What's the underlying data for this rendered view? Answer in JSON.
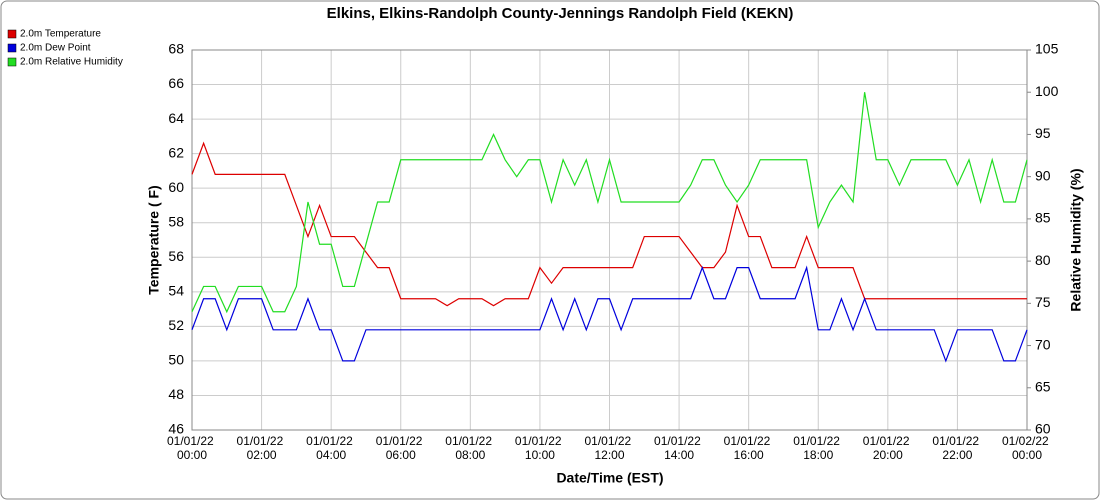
{
  "chart_data": {
    "type": "line",
    "title": "Elkins, Elkins-Randolph County-Jennings Randolph Field (KEKN)",
    "x_label": "Date/Time (EST)",
    "y_label": "Temperature ( F)",
    "y2_label": "Relative Humidity (%)",
    "x": [
      "01/01/22 00:00",
      "01/01/22 00:20",
      "01/01/22 00:40",
      "01/01/22 01:00",
      "01/01/22 01:20",
      "01/01/22 01:40",
      "01/01/22 02:00",
      "01/01/22 02:20",
      "01/01/22 02:40",
      "01/01/22 03:00",
      "01/01/22 03:20",
      "01/01/22 03:40",
      "01/01/22 04:00",
      "01/01/22 04:20",
      "01/01/22 04:40",
      "01/01/22 05:00",
      "01/01/22 05:20",
      "01/01/22 05:40",
      "01/01/22 06:00",
      "01/01/22 06:20",
      "01/01/22 06:40",
      "01/01/22 07:00",
      "01/01/22 07:20",
      "01/01/22 07:40",
      "01/01/22 08:00",
      "01/01/22 08:20",
      "01/01/22 08:40",
      "01/01/22 09:00",
      "01/01/22 09:20",
      "01/01/22 09:40",
      "01/01/22 10:00",
      "01/01/22 10:20",
      "01/01/22 10:40",
      "01/01/22 11:00",
      "01/01/22 11:20",
      "01/01/22 11:40",
      "01/01/22 12:00",
      "01/01/22 12:20",
      "01/01/22 12:40",
      "01/01/22 13:00",
      "01/01/22 13:20",
      "01/01/22 13:40",
      "01/01/22 14:00",
      "01/01/22 14:20",
      "01/01/22 14:40",
      "01/01/22 15:00",
      "01/01/22 15:20",
      "01/01/22 15:40",
      "01/01/22 16:00",
      "01/01/22 16:20",
      "01/01/22 16:40",
      "01/01/22 17:00",
      "01/01/22 17:20",
      "01/01/22 17:40",
      "01/01/22 18:00",
      "01/01/22 18:20",
      "01/01/22 18:40",
      "01/01/22 19:00",
      "01/01/22 19:20",
      "01/01/22 19:40",
      "01/01/22 20:00",
      "01/01/22 20:20",
      "01/01/22 20:40",
      "01/01/22 21:00",
      "01/01/22 21:20",
      "01/01/22 21:40",
      "01/01/22 22:00",
      "01/01/22 22:20",
      "01/01/22 22:40",
      "01/01/22 23:00",
      "01/01/22 23:20",
      "01/01/22 23:40",
      "01/02/22 00:00"
    ],
    "series": [
      {
        "name": "2.0m Temperature",
        "color": "#dd0000",
        "axis": "y",
        "values": [
          60.8,
          62.6,
          60.8,
          60.8,
          60.8,
          60.8,
          60.8,
          60.8,
          60.8,
          59.0,
          57.2,
          59.0,
          57.2,
          57.2,
          57.2,
          56.3,
          55.4,
          55.4,
          53.6,
          53.6,
          53.6,
          53.6,
          53.2,
          53.6,
          53.6,
          53.6,
          53.2,
          53.6,
          53.6,
          53.6,
          55.4,
          54.5,
          55.4,
          55.4,
          55.4,
          55.4,
          55.4,
          55.4,
          55.4,
          57.2,
          57.2,
          57.2,
          57.2,
          56.3,
          55.4,
          55.4,
          56.3,
          59.0,
          57.2,
          57.2,
          55.4,
          55.4,
          55.4,
          57.2,
          55.4,
          55.4,
          55.4,
          55.4,
          53.6,
          53.6,
          53.6,
          53.6,
          53.6,
          53.6,
          53.6,
          53.6,
          53.6,
          53.6,
          53.6,
          53.6,
          53.6,
          53.6,
          53.6
        ]
      },
      {
        "name": "2.0m Dew Point",
        "color": "#0000dd",
        "axis": "y",
        "values": [
          51.8,
          53.6,
          53.6,
          51.8,
          53.6,
          53.6,
          53.6,
          51.8,
          51.8,
          51.8,
          53.6,
          51.8,
          51.8,
          50.0,
          50.0,
          51.8,
          51.8,
          51.8,
          51.8,
          51.8,
          51.8,
          51.8,
          51.8,
          51.8,
          51.8,
          51.8,
          51.8,
          51.8,
          51.8,
          51.8,
          51.8,
          53.6,
          51.8,
          53.6,
          51.8,
          53.6,
          53.6,
          51.8,
          53.6,
          53.6,
          53.6,
          53.6,
          53.6,
          53.6,
          55.4,
          53.6,
          53.6,
          55.4,
          55.4,
          53.6,
          53.6,
          53.6,
          53.6,
          55.4,
          51.8,
          51.8,
          53.6,
          51.8,
          53.6,
          51.8,
          51.8,
          51.8,
          51.8,
          51.8,
          51.8,
          50.0,
          51.8,
          51.8,
          51.8,
          51.8,
          50.0,
          50.0,
          51.8
        ]
      },
      {
        "name": "2.0m Relative Humidity",
        "color": "#22dd22",
        "axis": "y2",
        "values": [
          74,
          77,
          77,
          74,
          77,
          77,
          77,
          74,
          74,
          77,
          87,
          82,
          82,
          77,
          77,
          82,
          87,
          87,
          92,
          92,
          92,
          92,
          92,
          92,
          92,
          92,
          95,
          92,
          90,
          92,
          92,
          87,
          92,
          89,
          92,
          87,
          92,
          87,
          87,
          87,
          87,
          87,
          87,
          89,
          92,
          92,
          89,
          87,
          89,
          92,
          92,
          92,
          92,
          92,
          84,
          87,
          89,
          87,
          100,
          92,
          92,
          89,
          92,
          92,
          92,
          92,
          89,
          92,
          87,
          92,
          87,
          87,
          92
        ]
      }
    ],
    "xlim": [
      "01/01/22 00:00",
      "01/02/22 00:00"
    ],
    "xticks": [
      "01/01/22 00:00",
      "01/01/22 02:00",
      "01/01/22 04:00",
      "01/01/22 06:00",
      "01/01/22 08:00",
      "01/01/22 10:00",
      "01/01/22 12:00",
      "01/01/22 14:00",
      "01/01/22 16:00",
      "01/01/22 18:00",
      "01/01/22 20:00",
      "01/01/22 22:00",
      "01/02/22 00:00"
    ],
    "ylim": [
      46,
      68
    ],
    "yticks": [
      46,
      48,
      50,
      52,
      54,
      56,
      58,
      60,
      62,
      64,
      66,
      68
    ],
    "y2lim": [
      60,
      105
    ],
    "y2ticks": [
      60,
      65,
      70,
      75,
      80,
      85,
      90,
      95,
      100,
      105
    ],
    "grid": true,
    "legend": "top-left"
  }
}
